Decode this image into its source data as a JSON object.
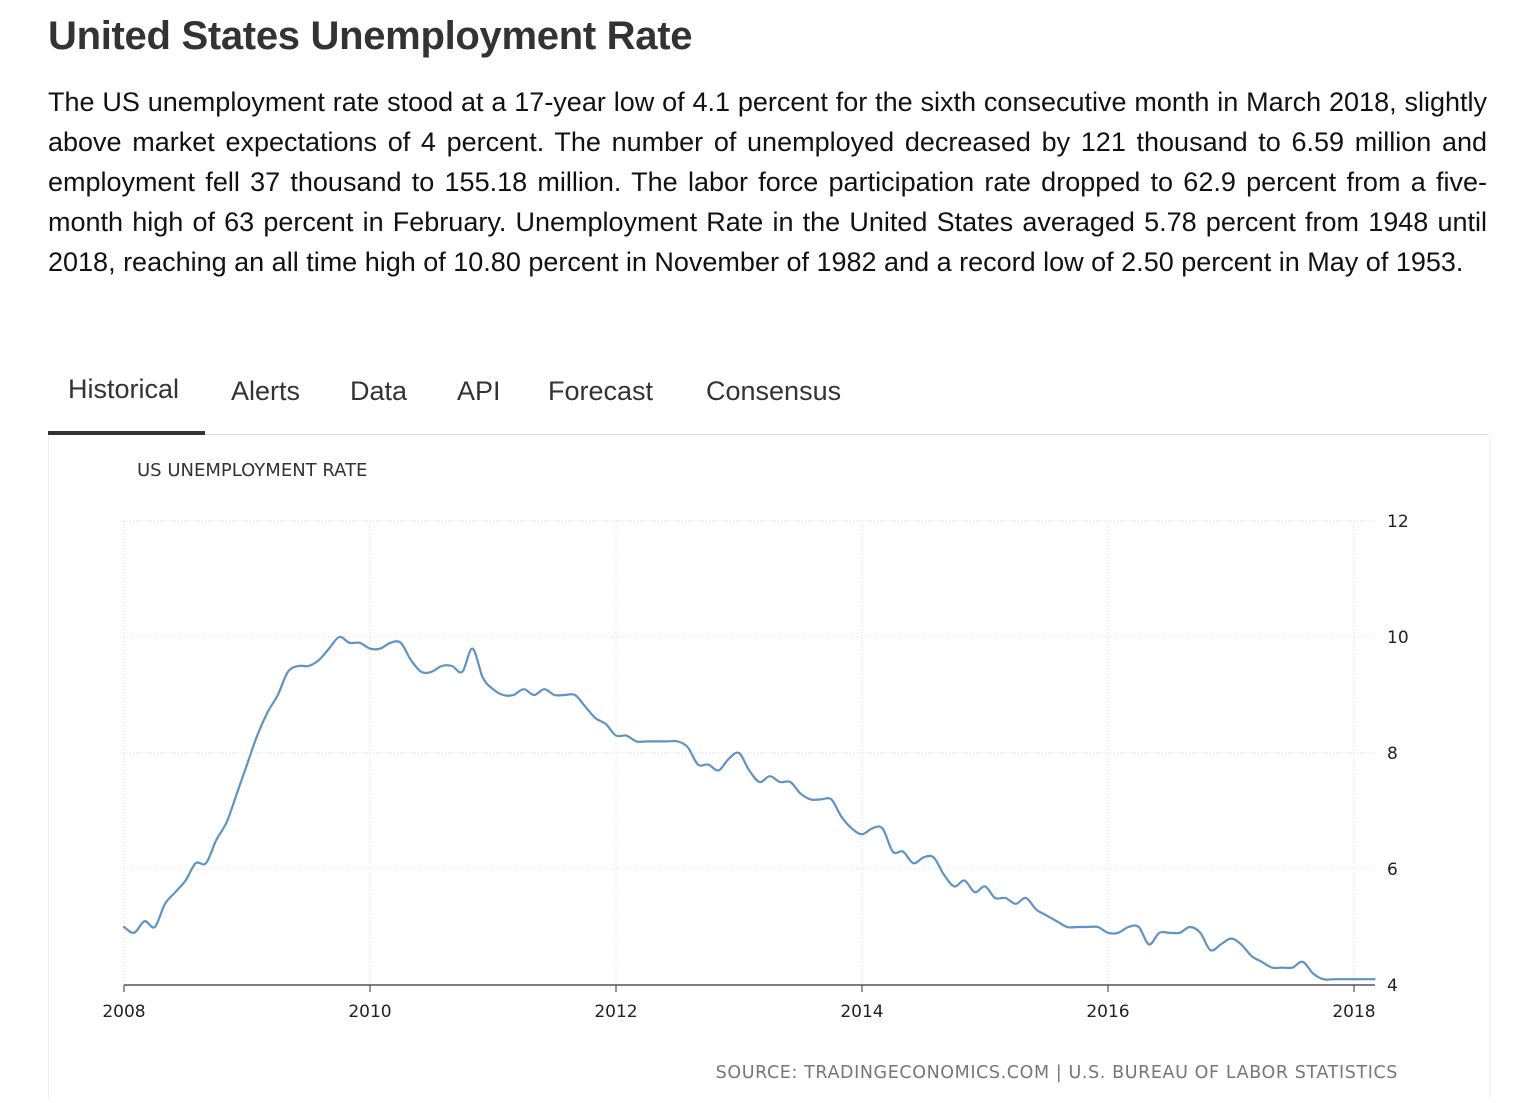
{
  "header": {
    "title": "United States Unemployment Rate",
    "description": "The US unemployment rate stood at a 17-year low of 4.1 percent for the sixth consecutive month in March 2018, slightly above market expectations of 4 percent. The number of unemployed decreased by 121 thousand to 6.59 million and employment fell 37 thousand to 155.18 million. The labor force participation rate dropped to 62.9 percent from a five-month high of 63 percent in February. Unemployment Rate in the United States averaged 5.78 percent from 1948 until 2018, reaching an all time high of 10.80 percent in November of 1982 and a record low of 2.50 percent in May of 1953."
  },
  "tabs": [
    {
      "label": "Historical",
      "active": true
    },
    {
      "label": "Alerts"
    },
    {
      "label": "Data"
    },
    {
      "label": "API"
    },
    {
      "label": "Forecast"
    },
    {
      "label": "Consensus"
    }
  ],
  "colors": {
    "line": "#5f93c2",
    "grid": "#dddddd",
    "tab_underline": "#333333",
    "source_text": "#777777"
  },
  "chart_data": {
    "type": "line",
    "title": "US UNEMPLOYMENT RATE",
    "source": "SOURCE: TRADINGECONOMICS.COM | U.S. BUREAU OF LABOR STATISTICS",
    "x_ticks": [
      2008,
      2010,
      2012,
      2014,
      2016,
      2018
    ],
    "y_ticks": [
      4,
      6,
      8,
      10,
      12
    ],
    "xlim": [
      2008,
      2018.2
    ],
    "ylim": [
      4,
      12
    ],
    "y_axis_side": "right",
    "grid": true,
    "series": [
      {
        "x": [
          2008.0,
          2008.083,
          2008.167,
          2008.25,
          2008.333,
          2008.417,
          2008.5,
          2008.583,
          2008.667,
          2008.75,
          2008.833,
          2008.917,
          2009.0,
          2009.083,
          2009.167,
          2009.25,
          2009.333,
          2009.417,
          2009.5,
          2009.583,
          2009.667,
          2009.75,
          2009.833,
          2009.917,
          2010.0,
          2010.083,
          2010.167,
          2010.25,
          2010.333,
          2010.417,
          2010.5,
          2010.583,
          2010.667,
          2010.75,
          2010.833,
          2010.917,
          2011.0,
          2011.083,
          2011.167,
          2011.25,
          2011.333,
          2011.417,
          2011.5,
          2011.583,
          2011.667,
          2011.75,
          2011.833,
          2011.917,
          2012.0,
          2012.083,
          2012.167,
          2012.25,
          2012.333,
          2012.417,
          2012.5,
          2012.583,
          2012.667,
          2012.75,
          2012.833,
          2012.917,
          2013.0,
          2013.083,
          2013.167,
          2013.25,
          2013.333,
          2013.417,
          2013.5,
          2013.583,
          2013.667,
          2013.75,
          2013.833,
          2013.917,
          2014.0,
          2014.083,
          2014.167,
          2014.25,
          2014.333,
          2014.417,
          2014.5,
          2014.583,
          2014.667,
          2014.75,
          2014.833,
          2014.917,
          2015.0,
          2015.083,
          2015.167,
          2015.25,
          2015.333,
          2015.417,
          2015.5,
          2015.583,
          2015.667,
          2015.75,
          2015.833,
          2015.917,
          2016.0,
          2016.083,
          2016.167,
          2016.25,
          2016.333,
          2016.417,
          2016.5,
          2016.583,
          2016.667,
          2016.75,
          2016.833,
          2016.917,
          2017.0,
          2017.083,
          2017.167,
          2017.25,
          2017.333,
          2017.417,
          2017.5,
          2017.583,
          2017.667,
          2017.75,
          2017.833,
          2017.917,
          2018.0,
          2018.083,
          2018.167
        ],
        "values": [
          5.0,
          4.9,
          5.1,
          5.0,
          5.4,
          5.6,
          5.8,
          6.1,
          6.1,
          6.5,
          6.8,
          7.3,
          7.8,
          8.3,
          8.7,
          9.0,
          9.4,
          9.5,
          9.5,
          9.6,
          9.8,
          10.0,
          9.9,
          9.9,
          9.8,
          9.8,
          9.9,
          9.9,
          9.6,
          9.4,
          9.4,
          9.5,
          9.5,
          9.4,
          9.8,
          9.3,
          9.1,
          9.0,
          9.0,
          9.1,
          9.0,
          9.1,
          9.0,
          9.0,
          9.0,
          8.8,
          8.6,
          8.5,
          8.3,
          8.3,
          8.2,
          8.2,
          8.2,
          8.2,
          8.2,
          8.1,
          7.8,
          7.8,
          7.7,
          7.9,
          8.0,
          7.7,
          7.5,
          7.6,
          7.5,
          7.5,
          7.3,
          7.2,
          7.2,
          7.2,
          6.9,
          6.7,
          6.6,
          6.7,
          6.7,
          6.3,
          6.3,
          6.1,
          6.2,
          6.2,
          5.9,
          5.7,
          5.8,
          5.6,
          5.7,
          5.5,
          5.5,
          5.4,
          5.5,
          5.3,
          5.2,
          5.1,
          5.0,
          5.0,
          5.0,
          5.0,
          4.9,
          4.9,
          5.0,
          5.0,
          4.7,
          4.9,
          4.9,
          4.9,
          5.0,
          4.9,
          4.6,
          4.7,
          4.8,
          4.7,
          4.5,
          4.4,
          4.3,
          4.3,
          4.3,
          4.4,
          4.2,
          4.1,
          4.1,
          4.1,
          4.1,
          4.1,
          4.1
        ]
      }
    ]
  }
}
